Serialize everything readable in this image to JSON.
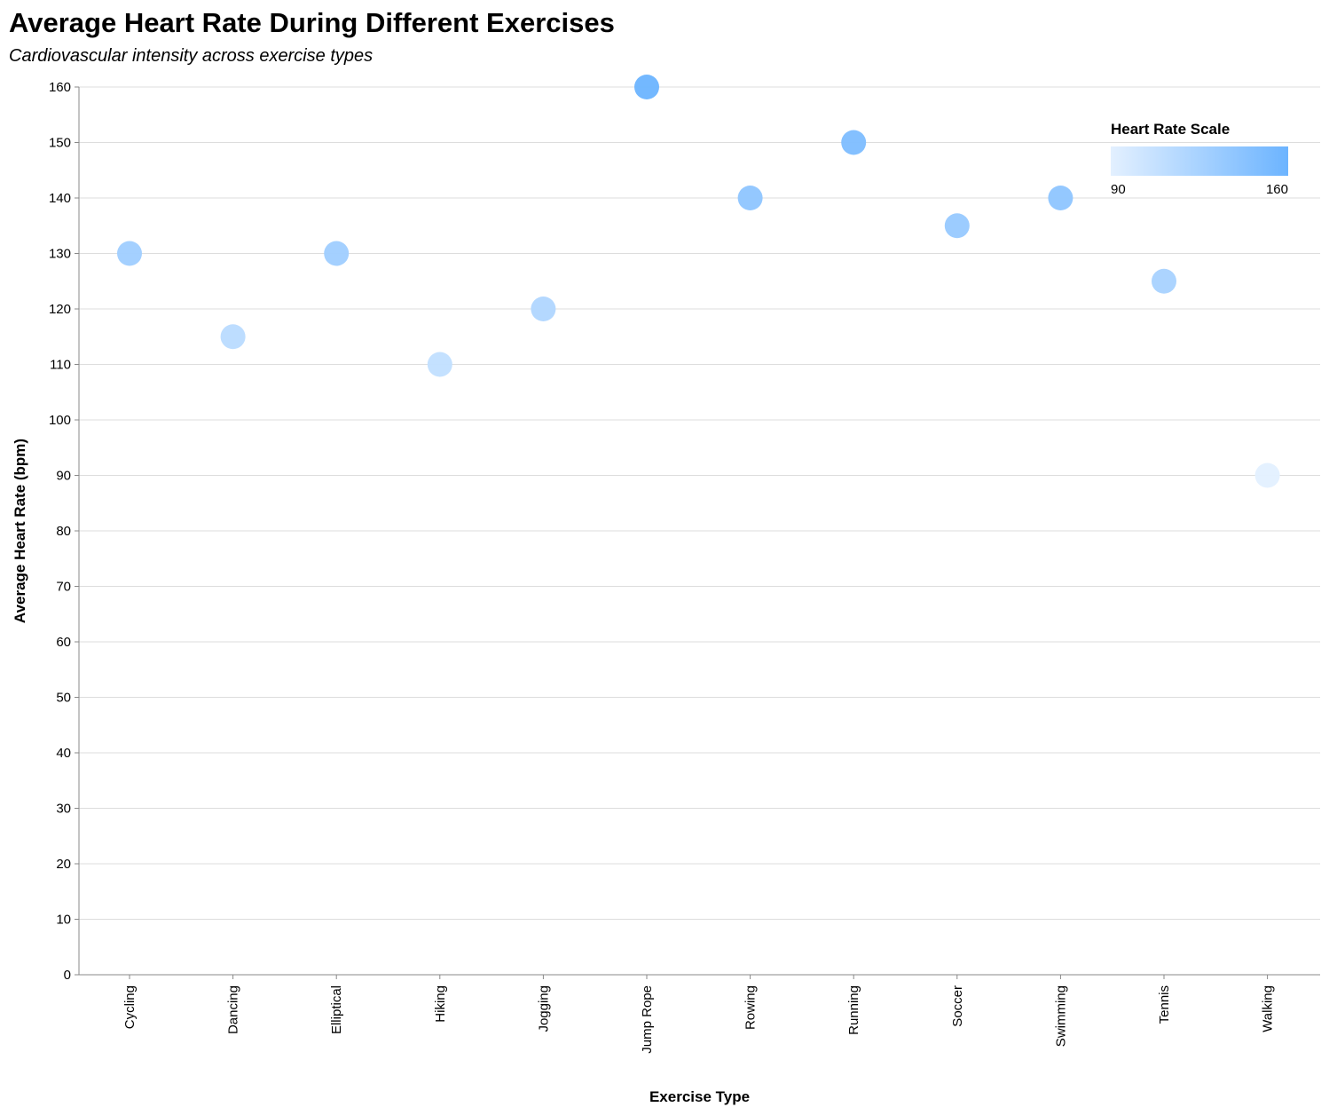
{
  "chart_data": {
    "type": "scatter",
    "title": "Average Heart Rate During Different Exercises",
    "subtitle": "Cardiovascular intensity across exercise types",
    "xlabel": "Exercise Type",
    "ylabel": "Average Heart Rate (bpm)",
    "categories": [
      "Cycling",
      "Dancing",
      "Elliptical",
      "Hiking",
      "Jogging",
      "Jump Rope",
      "Rowing",
      "Running",
      "Soccer",
      "Swimming",
      "Tennis",
      "Walking"
    ],
    "values": [
      130,
      115,
      130,
      110,
      120,
      160,
      140,
      150,
      135,
      140,
      125,
      90
    ],
    "ylim": [
      0,
      160
    ],
    "yticks": [
      0,
      10,
      20,
      30,
      40,
      50,
      60,
      70,
      80,
      90,
      100,
      110,
      120,
      130,
      140,
      150,
      160
    ],
    "grid": true,
    "legend": {
      "title": "Heart Rate Scale",
      "min_label": "90",
      "max_label": "160",
      "min_value": 90,
      "max_value": 160,
      "placement": "top-right"
    },
    "colors": {
      "low": "#e3f0ff",
      "high": "#6cb4ff",
      "grid": "#dddddd",
      "axis": "#888888"
    }
  }
}
